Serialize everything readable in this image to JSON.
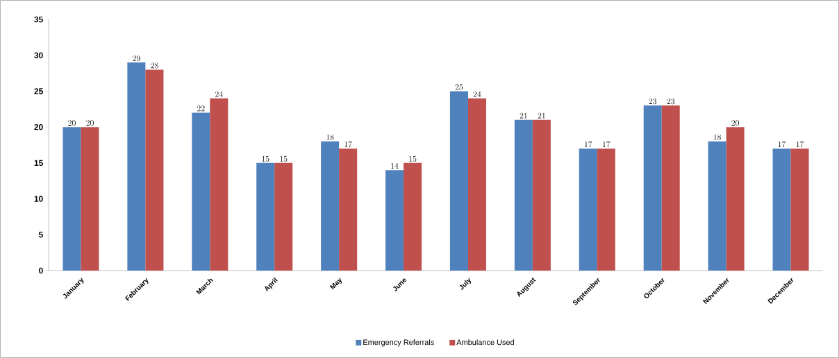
{
  "chart_data": {
    "type": "bar",
    "categories": [
      "January",
      "February",
      "March",
      "April",
      "May",
      "June",
      "July",
      "August",
      "September",
      "October",
      "November",
      "December"
    ],
    "series": [
      {
        "name": "Emergency Referrals",
        "color": "#4f81bd",
        "values": [
          20,
          29,
          22,
          15,
          18,
          14,
          25,
          21,
          17,
          23,
          18,
          17
        ]
      },
      {
        "name": "Ambulance Used",
        "color": "#c0504d",
        "values": [
          20,
          28,
          24,
          15,
          17,
          15,
          24,
          21,
          17,
          23,
          20,
          17
        ]
      }
    ],
    "ylim": [
      0,
      35
    ],
    "yticks": [
      0,
      5,
      10,
      15,
      20,
      25,
      30,
      35
    ],
    "data_labels": true,
    "legend": "bottom",
    "grid": false
  }
}
